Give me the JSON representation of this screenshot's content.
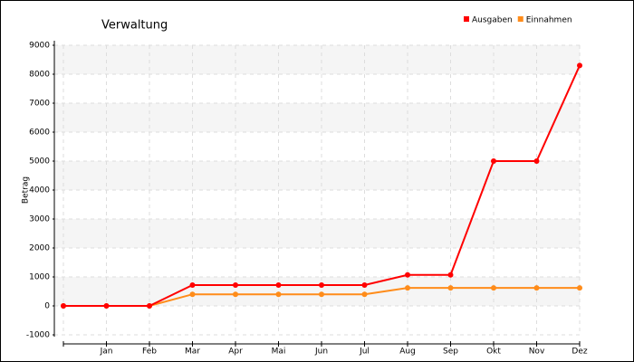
{
  "chart_data": {
    "type": "line",
    "title": "Verwaltung",
    "y_label": "Betrag",
    "categories": [
      null,
      "Jan",
      "Feb",
      "Mar",
      "Apr",
      "Mai",
      "Jun",
      "Jul",
      "Aug",
      "Sep",
      "Okt",
      "Nov",
      "Dez"
    ],
    "series": [
      {
        "name": "Ausgaben",
        "color": "#ff0000",
        "values": [
          0,
          0,
          0,
          720,
          720,
          720,
          720,
          720,
          1070,
          1070,
          5000,
          5000,
          8300
        ]
      },
      {
        "name": "Einnahmen",
        "color": "#ff8c1a",
        "values": [
          0,
          0,
          0,
          400,
          400,
          400,
          400,
          400,
          620,
          620,
          620,
          620,
          620
        ]
      }
    ],
    "ylim": [
      -1000,
      9000
    ],
    "yticks": [
      -1000,
      0,
      1000,
      2000,
      3000,
      4000,
      5000,
      6000,
      7000,
      8000,
      9000
    ],
    "grid": true,
    "legend": "top-right"
  }
}
